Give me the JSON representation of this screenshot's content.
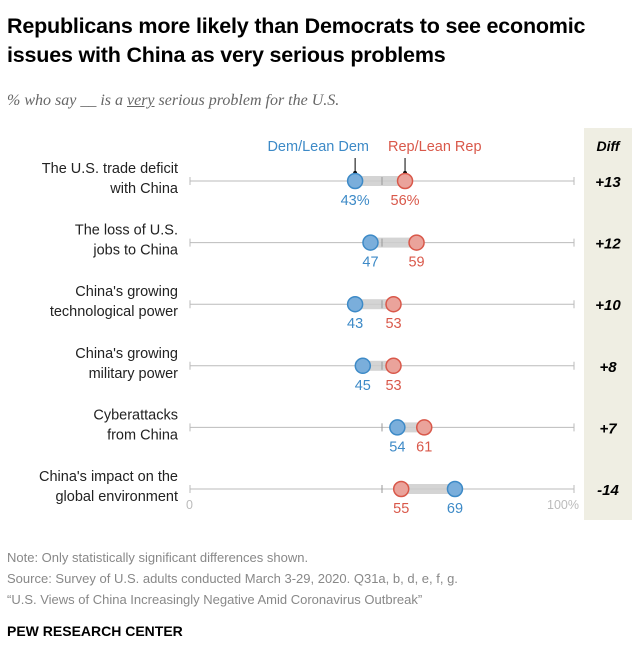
{
  "title": "Republicans more likely than Democrats to see economic issues with China as very serious problems",
  "subtitle": {
    "before": "% who say __ is a ",
    "emphasis": "very",
    "after": " serious problem for the U.S."
  },
  "chart_data": {
    "type": "dot",
    "legend": {
      "dem": "Dem/Lean Dem",
      "rep": "Rep/Lean Rep"
    },
    "diff_header": "Diff",
    "xlim": [
      0,
      100
    ],
    "axis_labels": {
      "min": "0",
      "max": "100%"
    },
    "colors": {
      "dem": "#3d8ac7",
      "dem_fill": "#7aaedb",
      "rep": "#d9584a",
      "rep_fill": "#eaa39b",
      "diff_bg": "#efeee3",
      "axis": "#bbbbbb",
      "bar": "#cccccc"
    },
    "rows": [
      {
        "label": [
          "The U.S. trade deficit",
          "with China"
        ],
        "dem": 43,
        "rep": 56,
        "dem_label": "43%",
        "rep_label": "56%",
        "diff": "+13"
      },
      {
        "label": [
          "The loss of U.S.",
          "jobs to China"
        ],
        "dem": 47,
        "rep": 59,
        "dem_label": "47",
        "rep_label": "59",
        "diff": "+12"
      },
      {
        "label": [
          "China's growing",
          "technological power"
        ],
        "dem": 43,
        "rep": 53,
        "dem_label": "43",
        "rep_label": "53",
        "diff": "+10"
      },
      {
        "label": [
          "China's growing",
          "military power"
        ],
        "dem": 45,
        "rep": 53,
        "dem_label": "45",
        "rep_label": "53",
        "diff": "+8"
      },
      {
        "label": [
          "Cyberattacks",
          "from China"
        ],
        "dem": 54,
        "rep": 61,
        "dem_label": "54",
        "rep_label": "61",
        "diff": "+7"
      },
      {
        "label": [
          "China's impact on the",
          "global environment"
        ],
        "dem": 69,
        "rep": 55,
        "dem_label": "69",
        "rep_label": "55",
        "diff": "-14"
      }
    ]
  },
  "notes": {
    "note": "Note: Only statistically significant differences shown.",
    "source": "Source: Survey of U.S. adults conducted March 3-29, 2020. Q31a, b, d, e, f, g.",
    "report": "“U.S. Views of China Increasingly Negative Amid Coronavirus Outbreak”"
  },
  "brand": "PEW RESEARCH CENTER"
}
